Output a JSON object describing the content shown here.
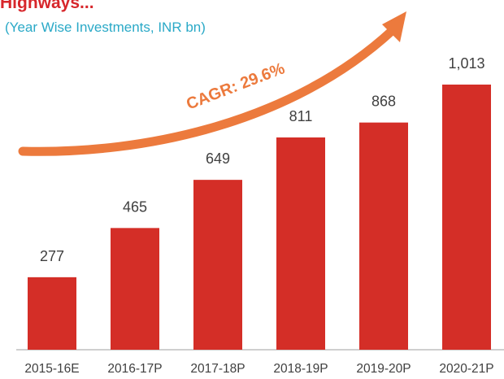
{
  "chart_data": {
    "type": "bar",
    "title": "Highways...",
    "subtitle": "(Year Wise Investments, INR bn)",
    "annotation": "CAGR: 29.6%",
    "categories": [
      "2015-16E",
      "2016-17P",
      "2017-18P",
      "2018-19P",
      "2019-20P",
      "2020-21P"
    ],
    "values": [
      277,
      465,
      649,
      811,
      868,
      1013
    ],
    "value_labels": [
      "277",
      "465",
      "649",
      "811",
      "868",
      "1,013"
    ],
    "color": "#d42e27"
  }
}
